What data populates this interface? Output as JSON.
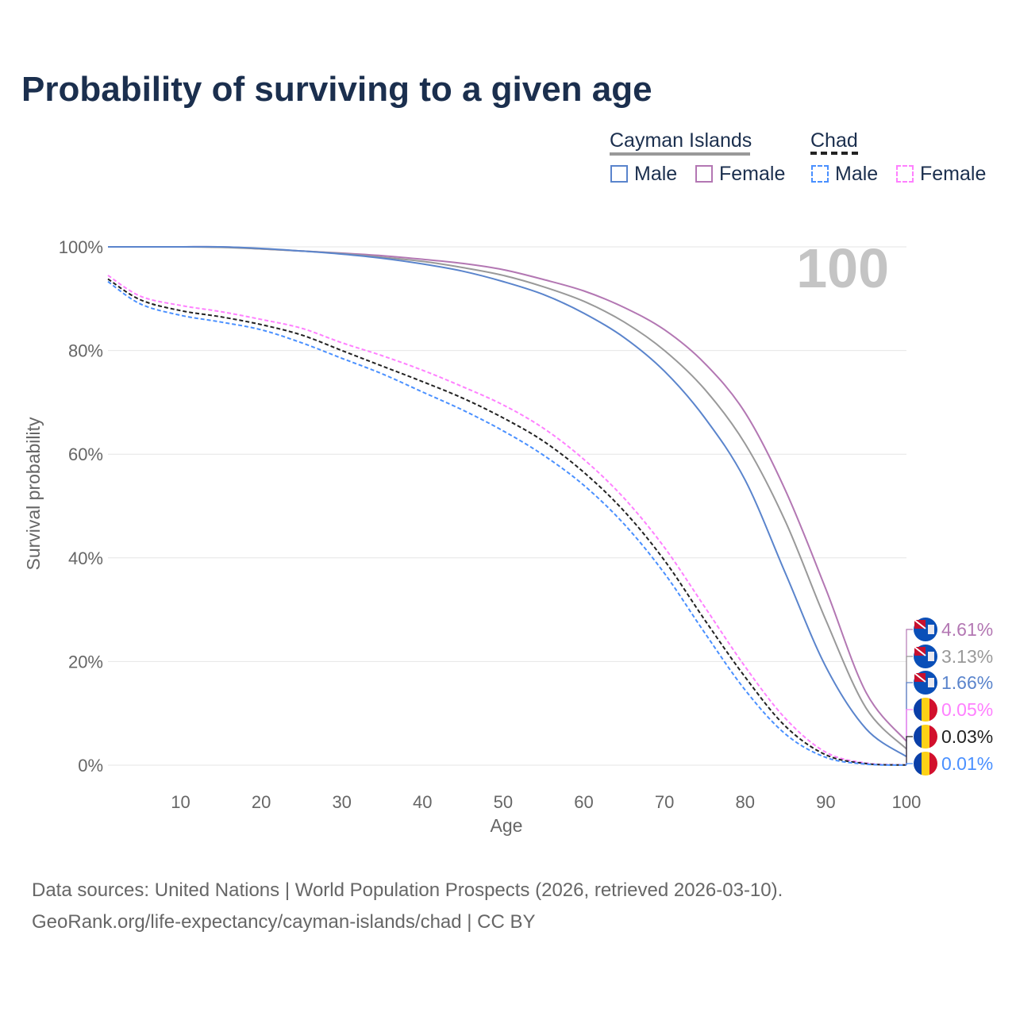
{
  "chart_data": {
    "type": "line",
    "title": "Probability of surviving to a given age",
    "xlabel": "Age",
    "ylabel": "Survival probability",
    "xlim": [
      1,
      100
    ],
    "ylim": [
      0,
      100
    ],
    "x_ticks": [
      "10",
      "20",
      "30",
      "40",
      "50",
      "60",
      "70",
      "80",
      "90",
      "100"
    ],
    "y_ticks": [
      "0%",
      "20%",
      "40%",
      "60%",
      "80%",
      "100%"
    ],
    "grid": true,
    "age_marker": "100",
    "x": [
      1,
      5,
      10,
      15,
      20,
      25,
      30,
      35,
      40,
      45,
      50,
      55,
      60,
      65,
      70,
      75,
      80,
      85,
      90,
      95,
      100
    ],
    "series": [
      {
        "name": "Cayman Islands Female",
        "country": "Cayman Islands",
        "color": "#b377b3",
        "dashed": false,
        "end_label": "4.61%",
        "values": [
          100,
          100,
          100,
          100,
          99.6,
          99.2,
          98.8,
          98.3,
          97.6,
          96.8,
          95.6,
          93.7,
          91.5,
          88.3,
          84,
          77.5,
          68,
          53,
          34,
          14,
          4.61
        ]
      },
      {
        "name": "Cayman Islands Total",
        "country": "Cayman Islands",
        "color": "#999999",
        "dashed": false,
        "end_label": "3.13%",
        "values": [
          100,
          100,
          100,
          99.9,
          99.6,
          99.2,
          98.7,
          98,
          97.2,
          96,
          94.5,
          92.3,
          89.5,
          85.5,
          80,
          72.5,
          62,
          47,
          28,
          11,
          3.13
        ]
      },
      {
        "name": "Cayman Islands Male",
        "country": "Cayman Islands",
        "color": "#5a84cc",
        "dashed": false,
        "end_label": "1.66%",
        "values": [
          100,
          100,
          100,
          100,
          99.7,
          99.2,
          98.6,
          97.8,
          96.7,
          95.3,
          93.3,
          90.8,
          87.2,
          82.5,
          76,
          67,
          55,
          37,
          19,
          7,
          1.66
        ]
      },
      {
        "name": "Chad Female",
        "country": "Chad",
        "color": "#ff80ff",
        "dashed": true,
        "end_label": "0.05%",
        "values": [
          94.5,
          90.5,
          88.7,
          87.5,
          86,
          84.3,
          81.5,
          79,
          76.2,
          73,
          69.5,
          65,
          59,
          51.5,
          42,
          30.5,
          19,
          9,
          2.5,
          0.4,
          0.05
        ]
      },
      {
        "name": "Chad Total",
        "country": "Chad",
        "color": "#222222",
        "dashed": true,
        "end_label": "0.03%",
        "values": [
          93.8,
          89.8,
          87.7,
          86.5,
          85,
          83,
          80,
          77,
          74,
          70.8,
          67,
          62.5,
          56.5,
          49,
          39.5,
          28,
          17,
          7.5,
          2,
          0.3,
          0.03
        ]
      },
      {
        "name": "Chad Male",
        "country": "Chad",
        "color": "#4a90ff",
        "dashed": true,
        "end_label": "0.01%",
        "values": [
          93.3,
          89,
          86.8,
          85.5,
          84,
          81.5,
          78.5,
          75.5,
          72,
          68.5,
          64.5,
          59.8,
          54,
          46.5,
          37,
          25.5,
          14.5,
          6,
          1.5,
          0.2,
          0.01
        ]
      }
    ],
    "legend": {
      "placement": "top-right",
      "groups": [
        {
          "label": "Cayman Islands",
          "items": [
            {
              "label": "Male",
              "color": "#5a84cc"
            },
            {
              "label": "Female",
              "color": "#b377b3"
            }
          ]
        },
        {
          "label": "Chad",
          "items": [
            {
              "label": "Male",
              "color": "#4a90ff"
            },
            {
              "label": "Female",
              "color": "#ff80ff"
            }
          ]
        }
      ]
    }
  },
  "footer": {
    "line1": "Data sources: United Nations | World Population Prospects (2026, retrieved 2026-03-10).",
    "line2": "GeoRank.org/life-expectancy/cayman-islands/chad | CC BY"
  }
}
